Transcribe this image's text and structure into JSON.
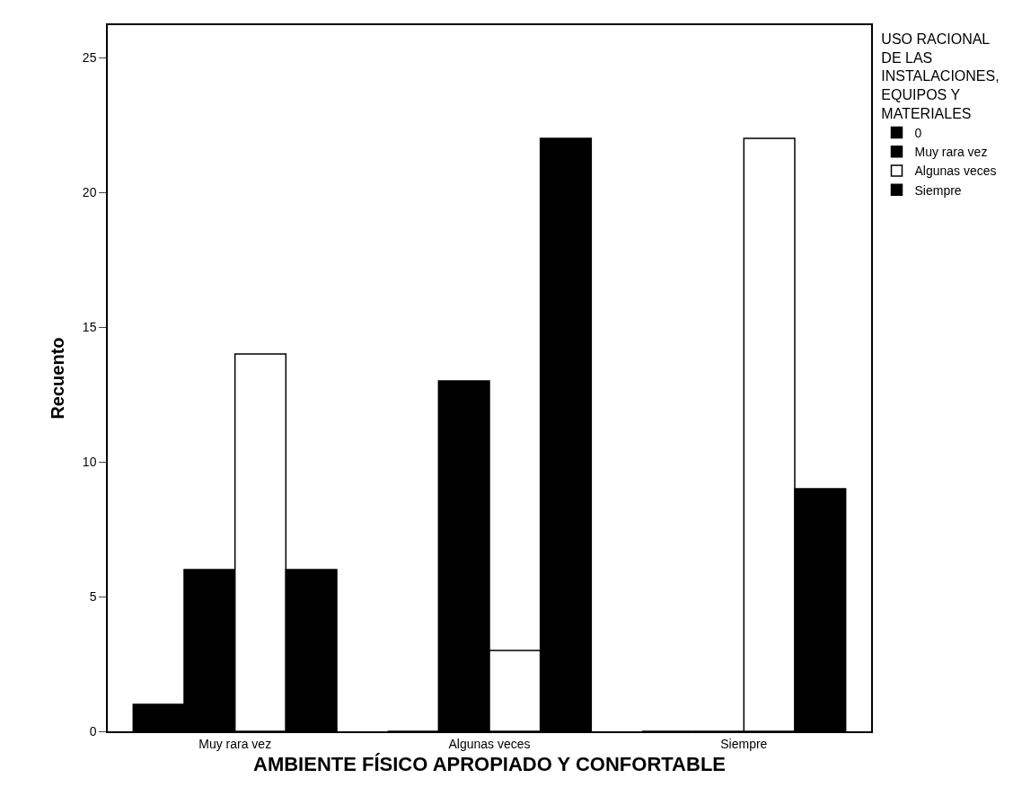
{
  "chart_data": {
    "type": "bar",
    "xlabel": "AMBIENTE FÍSICO APROPIADO Y CONFORTABLE",
    "ylabel": "Recuento",
    "legend_title": "USO RACIONAL DE LAS INSTALACIONES, EQUIPOS Y MATERIALES",
    "categories": [
      "Muy rara vez",
      "Algunas veces",
      "Siempre"
    ],
    "series": [
      {
        "name": "0",
        "color": "#000000",
        "values": [
          1,
          0,
          0
        ]
      },
      {
        "name": "Muy rara vez",
        "color": "#000000",
        "values": [
          6,
          13,
          0
        ]
      },
      {
        "name": "Algunas veces",
        "color": "#ffffff",
        "values": [
          14,
          3,
          22
        ]
      },
      {
        "name": "Siempre",
        "color": "#000000",
        "values": [
          6,
          22,
          9
        ]
      }
    ],
    "ylim": [
      0,
      26.2
    ],
    "yticks": [
      0,
      5,
      10,
      15,
      20,
      25
    ],
    "legend": "top right"
  }
}
